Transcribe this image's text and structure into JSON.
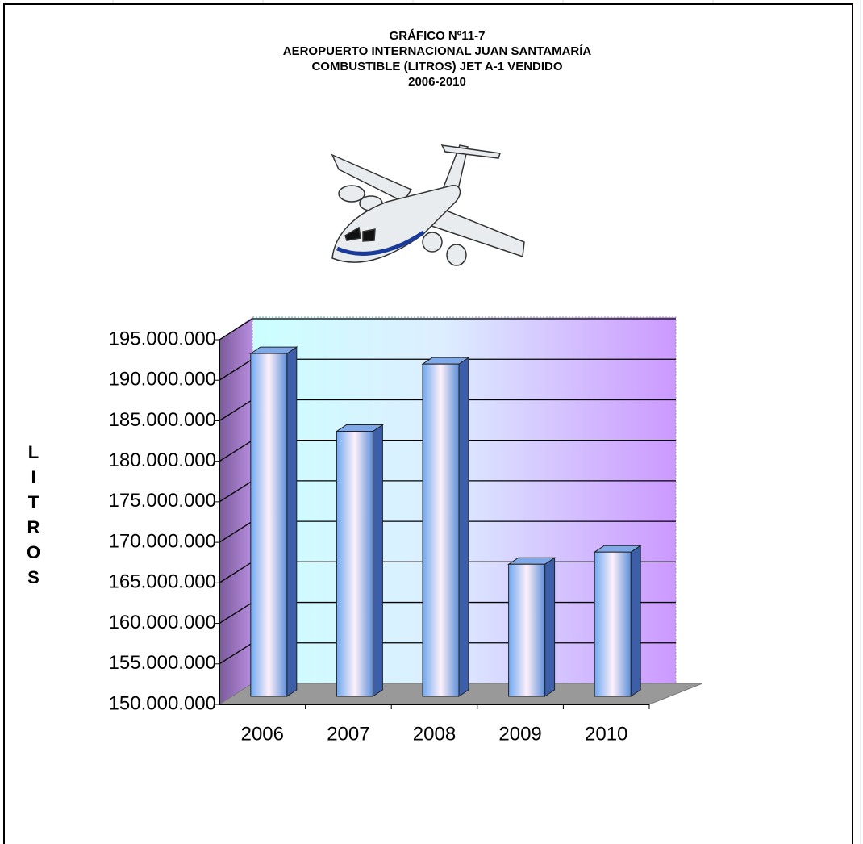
{
  "chart_data": {
    "type": "bar",
    "title": [
      "GRÁFICO Nº11-7",
      "AEROPUERTO INTERNACIONAL JUAN SANTAMARÍA",
      "COMBUSTIBLE (LITROS) JET A-1 VENDIDO",
      "2006-2010"
    ],
    "ylabel": "LITROS",
    "categories": [
      "2006",
      "2007",
      "2008",
      "2009",
      "2010"
    ],
    "values": [
      192300000,
      182700000,
      191000000,
      166300000,
      167800000
    ],
    "ylim": [
      150000000,
      195000000
    ],
    "yticks": [
      {
        "value": 150000000,
        "label": "150.000.000"
      },
      {
        "value": 155000000,
        "label": "155.000.000"
      },
      {
        "value": 160000000,
        "label": "160.000.000"
      },
      {
        "value": 165000000,
        "label": "165.000.000"
      },
      {
        "value": 170000000,
        "label": "170.000.000"
      },
      {
        "value": 175000000,
        "label": "175.000.000"
      },
      {
        "value": 180000000,
        "label": "180.000.000"
      },
      {
        "value": 185000000,
        "label": "185.000.000"
      },
      {
        "value": 190000000,
        "label": "190.000.000"
      },
      {
        "value": 195000000,
        "label": "195.000.000"
      }
    ],
    "grid": true
  }
}
